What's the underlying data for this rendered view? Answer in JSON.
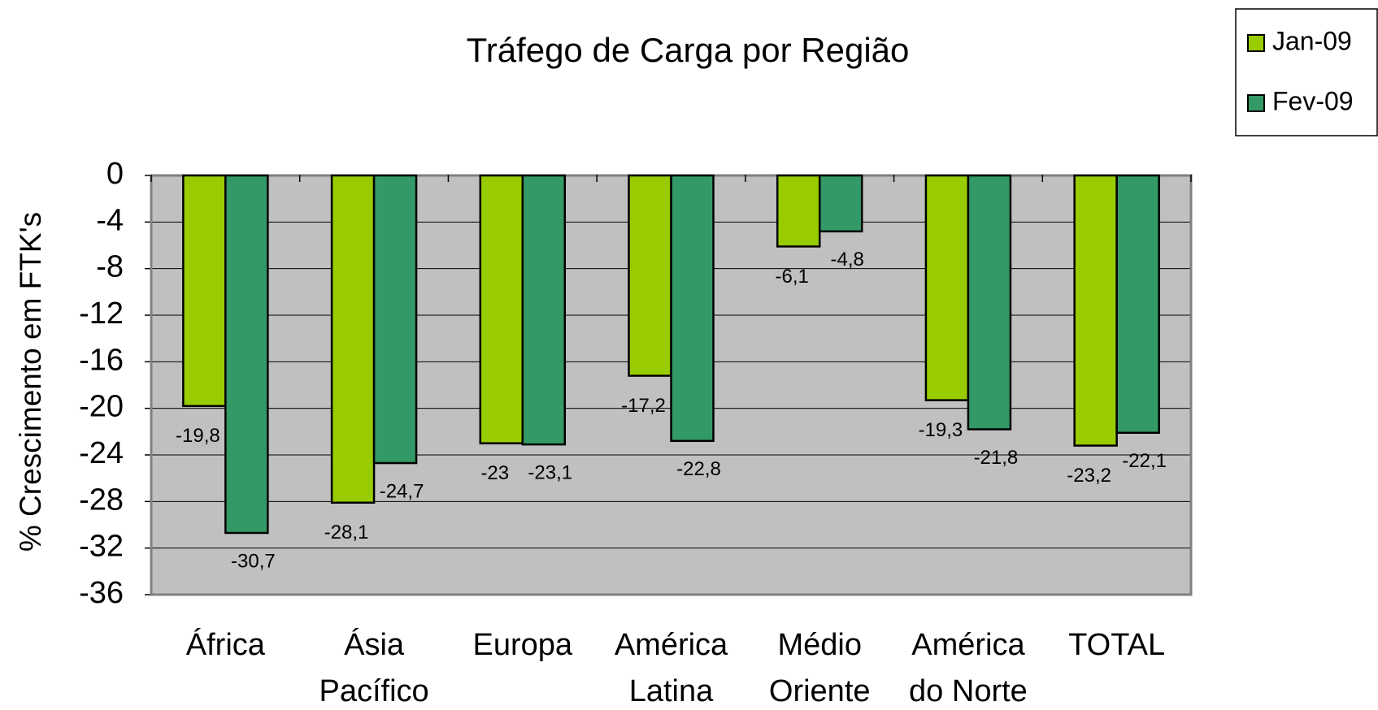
{
  "chart_data": {
    "type": "bar",
    "title": "Tráfego de Carga por Região",
    "y_label": "% Crescimento em FTK's",
    "categories": [
      "África",
      "Ásia Pacífico",
      "Europa",
      "América Latina",
      "Médio Oriente",
      "América do Norte",
      "TOTAL"
    ],
    "series": [
      {
        "name": "Jan-09",
        "color": "#99cc00",
        "values": [
          -19.8,
          -28.1,
          -23,
          -17.2,
          -6.1,
          -19.3,
          -23.2
        ],
        "value_labels": [
          "-19,8",
          "-28,1",
          "-23",
          "-17,2",
          "-6,1",
          "-19,3",
          "-23,2"
        ]
      },
      {
        "name": "Fev-09",
        "color": "#339966",
        "values": [
          -30.7,
          -24.7,
          -23.1,
          -22.8,
          -4.8,
          -21.8,
          -22.1
        ],
        "value_labels": [
          "-30,7",
          "-24,7",
          "-23,1",
          "-22,8",
          "-4,8",
          "-21,8",
          "-22,1"
        ]
      }
    ],
    "ylim": [
      -36,
      0
    ],
    "yticks": [
      0,
      -4,
      -8,
      -12,
      -16,
      -20,
      -24,
      -28,
      -32,
      -36
    ],
    "grid": true,
    "legend": "top-right"
  }
}
